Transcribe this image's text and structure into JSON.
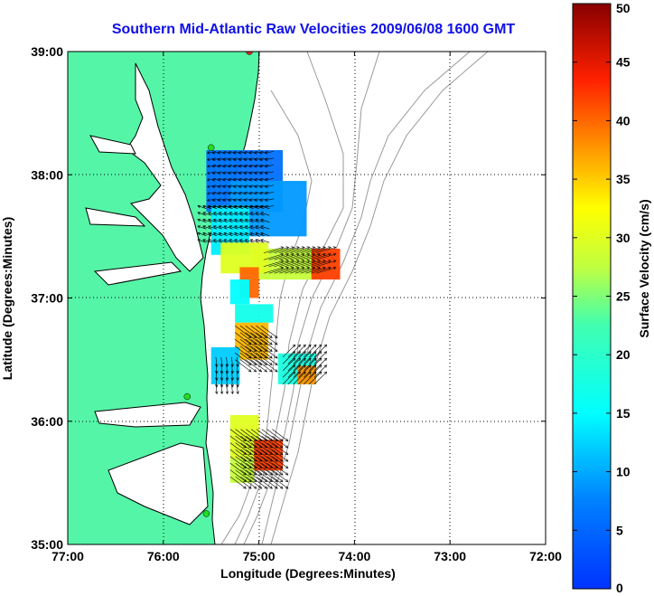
{
  "chart_data": {
    "type": "vector-field",
    "title": "Southern Mid-Atlantic Raw Velocities 2009/06/08 1600 GMT",
    "xlabel": "Longitude (Degrees:Minutes)",
    "ylabel": "Latitude (Degrees:Minutes)",
    "x_ticks": [
      "77:00",
      "76:00",
      "75:00",
      "74:00",
      "73:00",
      "72:00"
    ],
    "x_tick_values": [
      -77,
      -76,
      -75,
      -74,
      -73,
      -72
    ],
    "y_ticks": [
      "35:00",
      "36:00",
      "37:00",
      "38:00",
      "39:00"
    ],
    "y_tick_values": [
      35,
      36,
      37,
      38,
      39
    ],
    "xlim": [
      -77,
      -72
    ],
    "ylim": [
      35,
      39
    ],
    "grid": "dotted",
    "colorbar": {
      "label": "Surface Velocity (cm/s)",
      "range": [
        0,
        50
      ],
      "ticks": [
        0,
        5,
        10,
        15,
        20,
        25,
        30,
        35,
        40,
        45,
        50
      ],
      "colormap": "jet"
    },
    "colors": {
      "land": "#55f5a7",
      "coast": "#000000",
      "bathymetry": "#9a9a9a",
      "title": "#1010e8",
      "station": "#22dd22",
      "station_offline": "#e82020"
    },
    "stations": [
      {
        "lon": -75.1,
        "lat": 39.0,
        "status": "offline"
      },
      {
        "lon": -75.5,
        "lat": 38.22,
        "status": "online"
      },
      {
        "lon": -75.75,
        "lat": 36.2,
        "status": "online"
      },
      {
        "lon": -75.55,
        "lat": 35.25,
        "status": "online"
      }
    ],
    "regions": [
      {
        "speed": 6,
        "lon": [
          -75.55,
          -74.75
        ],
        "lat": [
          37.7,
          38.2
        ]
      },
      {
        "speed": 9,
        "lon": [
          -75.3,
          -74.5
        ],
        "lat": [
          37.5,
          37.95
        ]
      },
      {
        "speed": 14,
        "lon": [
          -75.5,
          -75.1
        ],
        "lat": [
          37.35,
          37.75
        ]
      },
      {
        "speed": 28,
        "lon": [
          -75.05,
          -74.35
        ],
        "lat": [
          37.15,
          37.4
        ]
      },
      {
        "speed": 42,
        "lon": [
          -74.45,
          -74.15
        ],
        "lat": [
          37.15,
          37.4
        ]
      },
      {
        "speed": 30,
        "lon": [
          -75.4,
          -74.9
        ],
        "lat": [
          37.2,
          37.45
        ]
      },
      {
        "speed": 40,
        "lon": [
          -75.2,
          -75.0
        ],
        "lat": [
          37.0,
          37.25
        ]
      },
      {
        "speed": 15,
        "lon": [
          -75.3,
          -75.1
        ],
        "lat": [
          36.95,
          37.15
        ]
      },
      {
        "speed": 17,
        "lon": [
          -75.25,
          -74.85
        ],
        "lat": [
          36.8,
          36.95
        ]
      },
      {
        "speed": 36,
        "lon": [
          -75.25,
          -74.9
        ],
        "lat": [
          36.5,
          36.8
        ]
      },
      {
        "speed": 12,
        "lon": [
          -75.5,
          -75.2
        ],
        "lat": [
          36.3,
          36.6
        ]
      },
      {
        "speed": 18,
        "lon": [
          -74.8,
          -74.4
        ],
        "lat": [
          36.3,
          36.55
        ]
      },
      {
        "speed": 38,
        "lon": [
          -74.6,
          -74.4
        ],
        "lat": [
          36.3,
          36.45
        ]
      },
      {
        "speed": 30,
        "lon": [
          -75.3,
          -75.0
        ],
        "lat": [
          35.7,
          36.05
        ]
      },
      {
        "speed": 42,
        "lon": [
          -75.05,
          -74.75
        ],
        "lat": [
          35.6,
          35.85
        ]
      },
      {
        "speed": 28,
        "lon": [
          -75.3,
          -75.05
        ],
        "lat": [
          35.5,
          35.7
        ]
      }
    ],
    "vector_groups": [
      {
        "lon": [
          -75.45,
          -74.8
        ],
        "lat": [
          37.75,
          38.2
        ],
        "u": -1.0,
        "v": -0.2,
        "speed": 8
      },
      {
        "lon": [
          -75.55,
          -74.85
        ],
        "lat": [
          37.45,
          37.75
        ],
        "u": -0.9,
        "v": 0.3,
        "speed": 10
      },
      {
        "lon": [
          -74.95,
          -74.35
        ],
        "lat": [
          37.2,
          37.4
        ],
        "u": 1.0,
        "v": 0.3,
        "speed": 35
      },
      {
        "lon": [
          -75.25,
          -74.95
        ],
        "lat": [
          36.5,
          36.8
        ],
        "u": 0.8,
        "v": -0.6,
        "speed": 36
      },
      {
        "lon": [
          -75.45,
          -75.2
        ],
        "lat": [
          36.3,
          36.55
        ],
        "u": 0.1,
        "v": -1.0,
        "speed": 10
      },
      {
        "lon": [
          -74.75,
          -74.4
        ],
        "lat": [
          36.3,
          36.55
        ],
        "u": 0.7,
        "v": 0.7,
        "speed": 30
      },
      {
        "lon": [
          -75.3,
          -74.85
        ],
        "lat": [
          35.55,
          35.95
        ],
        "u": 0.8,
        "v": -0.6,
        "speed": 35
      }
    ]
  }
}
